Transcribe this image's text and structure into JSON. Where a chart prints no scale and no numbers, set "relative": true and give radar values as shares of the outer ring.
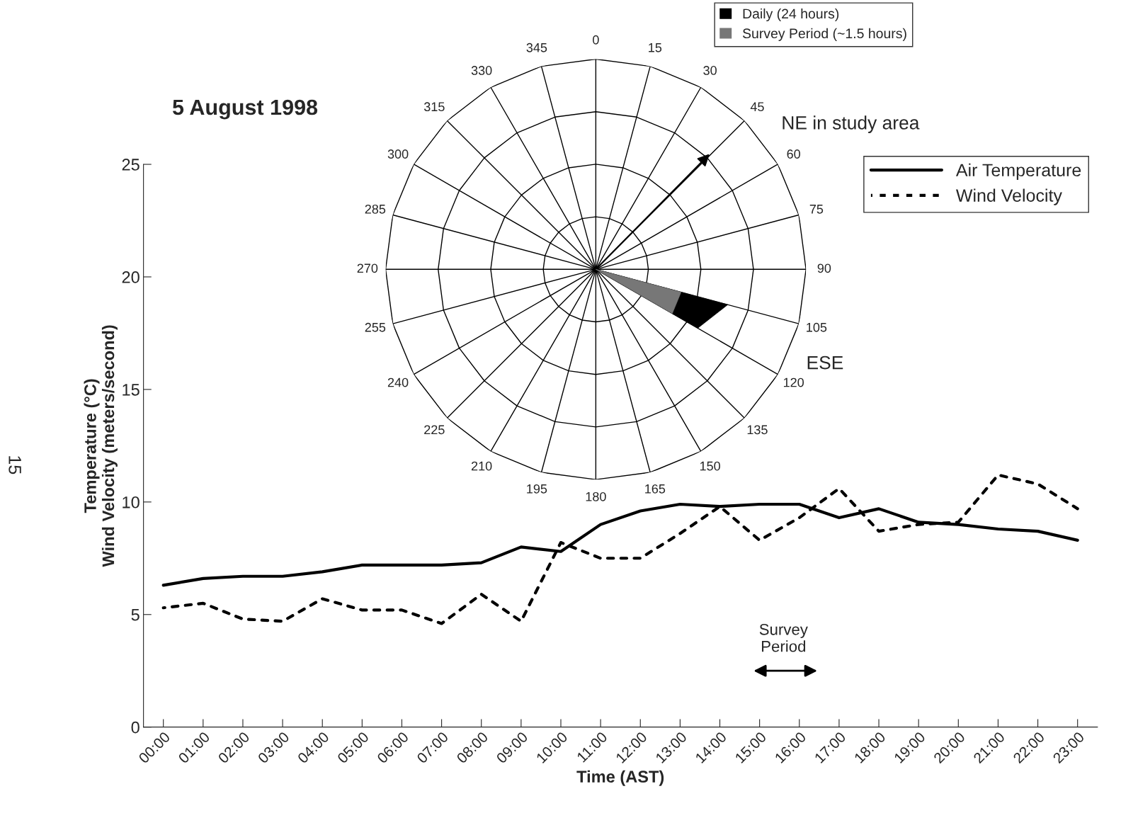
{
  "chart_data": [
    {
      "type": "line",
      "title": "5 August 1998",
      "xlabel": "Time (AST)",
      "ylabel": "Temperature (°C)\nWind Velocity (meters/second)",
      "categories": [
        "00:00",
        "01:00",
        "02:00",
        "03:00",
        "04:00",
        "05:00",
        "06:00",
        "07:00",
        "08:00",
        "09:00",
        "10:00",
        "11:00",
        "12:00",
        "13:00",
        "14:00",
        "15:00",
        "16:00",
        "17:00",
        "18:00",
        "19:00",
        "20:00",
        "21:00",
        "22:00",
        "23:00"
      ],
      "series": [
        {
          "name": "Air Temperature",
          "color": "#000000",
          "line_style": "solid",
          "values": [
            6.3,
            6.6,
            6.7,
            6.7,
            6.9,
            7.2,
            7.2,
            7.2,
            7.3,
            8.0,
            7.8,
            9.0,
            9.6,
            9.9,
            9.8,
            9.9,
            9.9,
            9.3,
            9.7,
            9.1,
            9.0,
            8.8,
            8.7,
            8.3
          ]
        },
        {
          "name": "Wind Velocity",
          "color": "#000000",
          "line_style": "dashed",
          "values": [
            5.3,
            5.5,
            4.8,
            4.7,
            5.7,
            5.2,
            5.2,
            4.6,
            5.9,
            4.7,
            8.2,
            7.5,
            7.5,
            8.6,
            9.8,
            8.3,
            9.3,
            10.6,
            8.7,
            9.0,
            9.1,
            11.2,
            10.8,
            9.7
          ]
        }
      ],
      "ylim": [
        0,
        25
      ],
      "yticks": [
        0,
        5,
        10,
        15,
        20,
        25
      ],
      "grid": false,
      "legend": "top right",
      "marker": "none",
      "annotations": [
        "Survey\nPeriod",
        "15"
      ]
    },
    {
      "type": "radar",
      "relative": true,
      "categories": [
        "0",
        "15",
        "30",
        "45",
        "60",
        "75",
        "90",
        "105",
        "120",
        "135",
        "150",
        "165",
        "180",
        "195",
        "210",
        "225",
        "240",
        "255",
        "270",
        "285",
        "300",
        "315",
        "330",
        "345"
      ],
      "series": [
        {
          "name": "Daily (24 hours)",
          "color": "#000000",
          "values": [
            0,
            0,
            0,
            0,
            0,
            0,
            0,
            0.65,
            0.56,
            0,
            0,
            0,
            0,
            0,
            0,
            0,
            0,
            0,
            0,
            0,
            0,
            0,
            0,
            0
          ]
        },
        {
          "name": "Survey Period (~1.5 hours)",
          "color": "#777777",
          "values": [
            0,
            0,
            0,
            0,
            0,
            0,
            0,
            0.42,
            0.42,
            0,
            0,
            0,
            0,
            0,
            0,
            0,
            0,
            0,
            0,
            0,
            0,
            0,
            0,
            0
          ]
        }
      ],
      "grid": true,
      "legend": "top right",
      "annotations": [
        "NE in study area",
        "ESE"
      ]
    }
  ]
}
